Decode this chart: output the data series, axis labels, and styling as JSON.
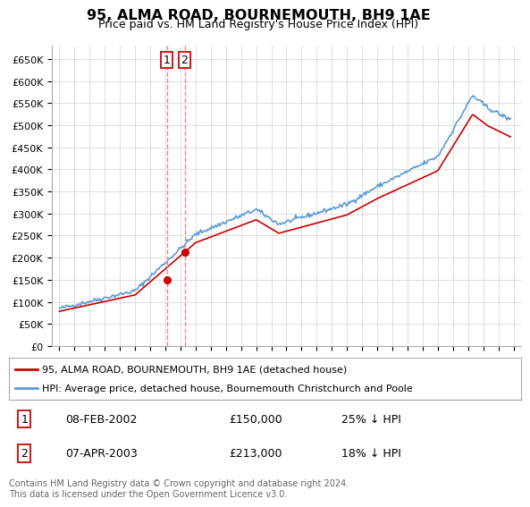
{
  "title": "95, ALMA ROAD, BOURNEMOUTH, BH9 1AE",
  "subtitle": "Price paid vs. HM Land Registry's House Price Index (HPI)",
  "ylabel_ticks": [
    "£0",
    "£50K",
    "£100K",
    "£150K",
    "£200K",
    "£250K",
    "£300K",
    "£350K",
    "£400K",
    "£450K",
    "£500K",
    "£550K",
    "£600K",
    "£650K"
  ],
  "ytick_values": [
    0,
    50000,
    100000,
    150000,
    200000,
    250000,
    300000,
    350000,
    400000,
    450000,
    500000,
    550000,
    600000,
    650000
  ],
  "ylim": [
    0,
    680000
  ],
  "xlim_start": 1994.5,
  "xlim_end": 2025.5,
  "sale1_x": 2002.1,
  "sale1_y": 150000,
  "sale2_x": 2003.27,
  "sale2_y": 213000,
  "legend_line1": "95, ALMA ROAD, BOURNEMOUTH, BH9 1AE (detached house)",
  "legend_line2": "HPI: Average price, detached house, Bournemouth Christchurch and Poole",
  "table_row1": [
    "1",
    "08-FEB-2002",
    "£150,000",
    "25% ↓ HPI"
  ],
  "table_row2": [
    "2",
    "07-APR-2003",
    "£213,000",
    "18% ↓ HPI"
  ],
  "footer": "Contains HM Land Registry data © Crown copyright and database right 2024.\nThis data is licensed under the Open Government Licence v3.0.",
  "sale_color": "#cc0000",
  "hpi_color": "#5b9bd5",
  "vline_color": "#ee8888",
  "grid_color": "#dddddd",
  "background_color": "#ffffff"
}
